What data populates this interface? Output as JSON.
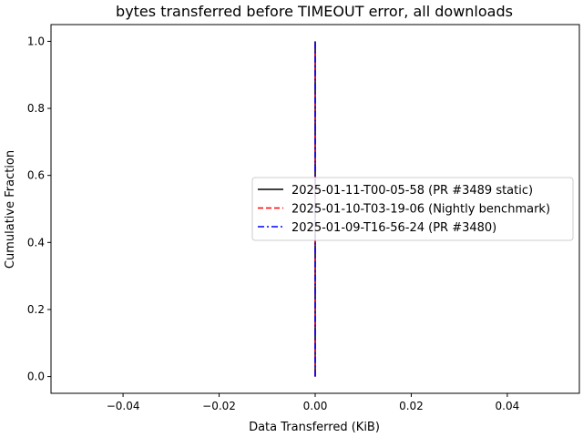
{
  "chart_data": {
    "type": "line",
    "title": "bytes transferred before TIMEOUT error, all downloads",
    "xlabel": "Data Transferred (KiB)",
    "ylabel": "Cumulative Fraction",
    "xlim": [
      -0.055,
      0.055
    ],
    "ylim": [
      -0.05,
      1.05
    ],
    "xticks": [
      -0.04,
      -0.02,
      0.0,
      0.02,
      0.04
    ],
    "xtick_labels": [
      "−0.04",
      "−0.02",
      "0.00",
      "0.02",
      "0.04"
    ],
    "yticks": [
      0.0,
      0.2,
      0.4,
      0.6,
      0.8,
      1.0
    ],
    "ytick_labels": [
      "0.0",
      "0.2",
      "0.4",
      "0.6",
      "0.8",
      "1.0"
    ],
    "grid": false,
    "legend_position": "center-right",
    "series": [
      {
        "name": "2025-01-11-T00-05-58 (PR #3489 static)",
        "color": "#000000",
        "dash": "solid",
        "x": [
          0,
          0
        ],
        "y": [
          0,
          1
        ]
      },
      {
        "name": "2025-01-10-T03-19-06 (Nightly benchmark)",
        "color": "#ff0000",
        "dash": "dashed",
        "x": [
          0,
          0
        ],
        "y": [
          0,
          1
        ]
      },
      {
        "name": "2025-01-09-T16-56-24 (PR #3480)",
        "color": "#0000ff",
        "dash": "dashdot",
        "x": [
          0,
          0
        ],
        "y": [
          0,
          1
        ]
      }
    ]
  }
}
